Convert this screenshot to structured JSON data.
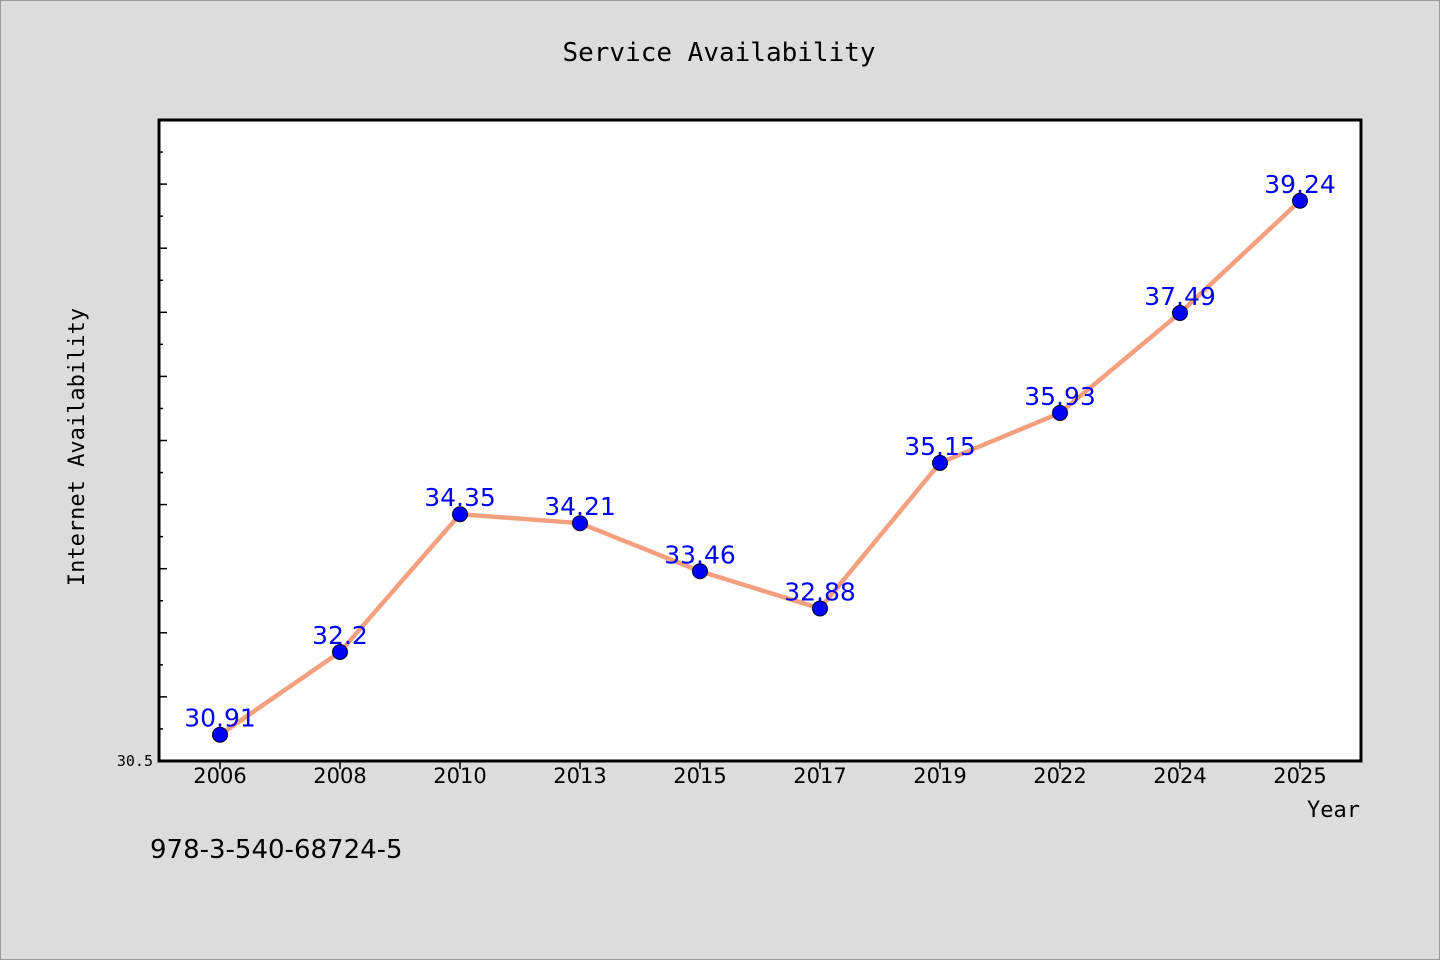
{
  "chart_data": {
    "type": "line",
    "title": "Service Availability",
    "xlabel": "Year",
    "ylabel": "Internet Availability",
    "categories": [
      "2006",
      "2008",
      "2010",
      "2013",
      "2015",
      "2017",
      "2019",
      "2022",
      "2024",
      "2025"
    ],
    "series": [
      {
        "values": [
          30.91,
          32.2,
          34.35,
          34.21,
          33.46,
          32.88,
          35.15,
          35.93,
          37.49,
          39.24
        ]
      }
    ],
    "value_labels": [
      "30.91",
      "32.2",
      "34.35",
      "34.21",
      "33.46",
      "32.88",
      "35.15",
      "35.93",
      "37.49",
      "39.24"
    ],
    "y_tick_labels": [
      "30.5"
    ],
    "ylim": [
      30.5,
      40.5
    ],
    "grid": false,
    "legend": "none",
    "colors": {
      "line": "#f4a07f",
      "marker": "#0000ff",
      "value_label": "#0000ff",
      "plot_bg": "#ffffff",
      "page_bg": "#dcdcdc"
    }
  },
  "footer": {
    "isbn": "978-3-540-68724-5"
  }
}
